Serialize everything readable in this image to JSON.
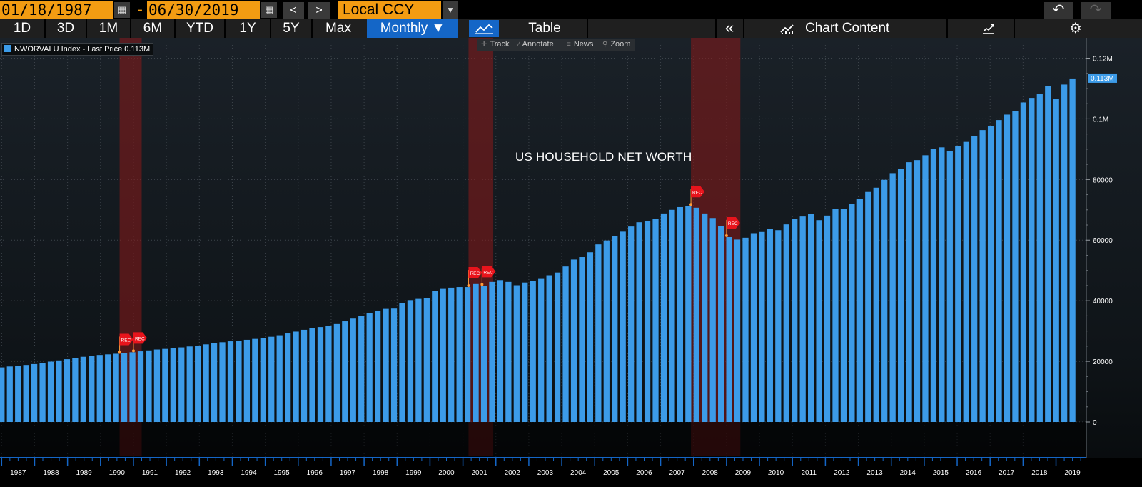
{
  "toolbar": {
    "start_date": "01/18/1987",
    "end_date": "06/30/2019",
    "dash": "-",
    "prev_label": "<",
    "next_label": ">",
    "currency": "Local CCY",
    "undo_label": "↶",
    "redo_label": "↷"
  },
  "periods": [
    "1D",
    "3D",
    "1M",
    "6M",
    "YTD",
    "1Y",
    "5Y",
    "Max"
  ],
  "frequency": "Monthly ▼",
  "table_label": "Table",
  "collapse_label": "«",
  "chart_content_label": "Chart Content",
  "gear_label": "⚙",
  "tools": [
    {
      "label": "Track",
      "icon": "crosshair-icon"
    },
    {
      "label": "Annotate",
      "icon": "pencil-icon"
    },
    {
      "label": "News",
      "icon": "news-icon"
    },
    {
      "label": "Zoom",
      "icon": "magnifier-icon"
    }
  ],
  "legend": "NWORVALU Index - Last Price 0.113M",
  "colors": {
    "bar": "#3c9be8",
    "recession": "#8b1a1a",
    "accent": "#f39c12",
    "selected": "#1466c7",
    "rec_marker": "#e8141c"
  },
  "chart_data": {
    "type": "bar",
    "title": "US HOUSEHOLD NET WORTH",
    "series_name": "NWORVALU Index",
    "last_price_label": "0.113M",
    "ylim": [
      0,
      122000
    ],
    "y_ticks": [
      {
        "value": 0,
        "label": "0"
      },
      {
        "value": 20000,
        "label": "20000"
      },
      {
        "value": 40000,
        "label": "40000"
      },
      {
        "value": 60000,
        "label": "60000"
      },
      {
        "value": 80000,
        "label": "80000"
      },
      {
        "value": 100000,
        "label": "0.1M"
      },
      {
        "value": 120000,
        "label": "0.12M"
      }
    ],
    "x_start": 1987.0,
    "x_end": 2019.5,
    "x_labels": [
      "1987",
      "1988",
      "1989",
      "1990",
      "1991",
      "1992",
      "1993",
      "1994",
      "1995",
      "1996",
      "1997",
      "1998",
      "1999",
      "2000",
      "2001",
      "2002",
      "2003",
      "2004",
      "2005",
      "2006",
      "2007",
      "2008",
      "2009",
      "2010",
      "2011",
      "2012",
      "2013",
      "2014",
      "2015",
      "2016",
      "2017",
      "2018",
      "2019"
    ],
    "recession_periods": [
      [
        1990.58,
        1991.25
      ],
      [
        2001.17,
        2001.92
      ],
      [
        2007.92,
        2009.42
      ]
    ],
    "rec_marker_label": "REC",
    "rec_markers": [
      1990.58,
      1991.0,
      2001.17,
      2001.58,
      2007.92,
      2009.0
    ],
    "values": [
      18000,
      18300,
      18600,
      18800,
      19100,
      19500,
      19900,
      20300,
      20700,
      21100,
      21500,
      21800,
      22100,
      22300,
      22500,
      22800,
      23000,
      23300,
      23600,
      23900,
      24100,
      24300,
      24600,
      24900,
      25200,
      25600,
      26000,
      26300,
      26600,
      26800,
      27100,
      27400,
      27700,
      28100,
      28600,
      29200,
      29800,
      30400,
      30900,
      31300,
      31700,
      32300,
      33200,
      34100,
      35000,
      35800,
      36700,
      37300,
      37400,
      39300,
      40200,
      40600,
      40900,
      43300,
      43900,
      44300,
      44500,
      44500,
      45500,
      44900,
      46200,
      46800,
      46200,
      45100,
      46000,
      46400,
      47200,
      48400,
      49300,
      51300,
      53600,
      54400,
      56000,
      58600,
      59900,
      61400,
      62800,
      64500,
      65900,
      66200,
      66900,
      68800,
      70000,
      70900,
      71300,
      70700,
      68800,
      67300,
      64600,
      61000,
      60200,
      60800,
      62300,
      62700,
      63600,
      63300,
      65200,
      66900,
      67800,
      68600,
      66600,
      68100,
      70300,
      70400,
      71900,
      73500,
      75900,
      77300,
      79900,
      82100,
      83600,
      85700,
      86400,
      88000,
      90100,
      90600,
      89500,
      91000,
      92400,
      94300,
      96300,
      97700,
      99600,
      101400,
      102600,
      105400,
      106900,
      108300,
      110700,
      106500,
      111300,
      113300
    ]
  }
}
